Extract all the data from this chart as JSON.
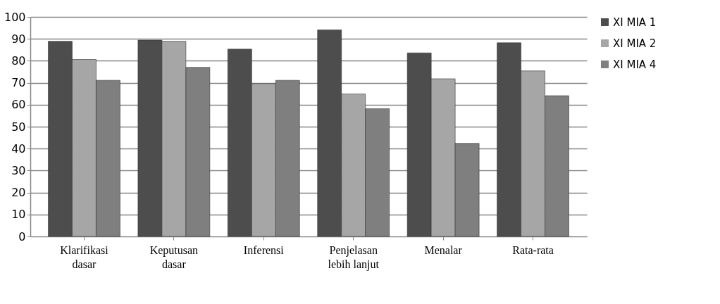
{
  "chart_data": {
    "type": "bar",
    "categories": [
      "Klarifikasi\ndasar",
      "Keputusan\ndasar",
      "Inferensi",
      "Penjelasan\nlebih lanjut",
      "Menalar",
      "Rata-rata"
    ],
    "series": [
      {
        "name": "XI MIA 1",
        "color": "#4d4d4d",
        "values": [
          88.9,
          89.4,
          85.3,
          94.1,
          83.6,
          88.2
        ]
      },
      {
        "name": "XI MIA 2",
        "color": "#a6a6a6",
        "values": [
          80.6,
          88.9,
          69.6,
          64.9,
          71.8,
          75.4
        ]
      },
      {
        "name": "XI MIA 4",
        "color": "#7f7f7f",
        "values": [
          71.1,
          77.0,
          71.1,
          58.2,
          42.4,
          64.1
        ]
      }
    ],
    "ylim": [
      0,
      100
    ],
    "yticks": [
      0,
      10,
      20,
      30,
      40,
      50,
      60,
      70,
      80,
      90,
      100
    ],
    "grid": "y",
    "legend": "right"
  }
}
